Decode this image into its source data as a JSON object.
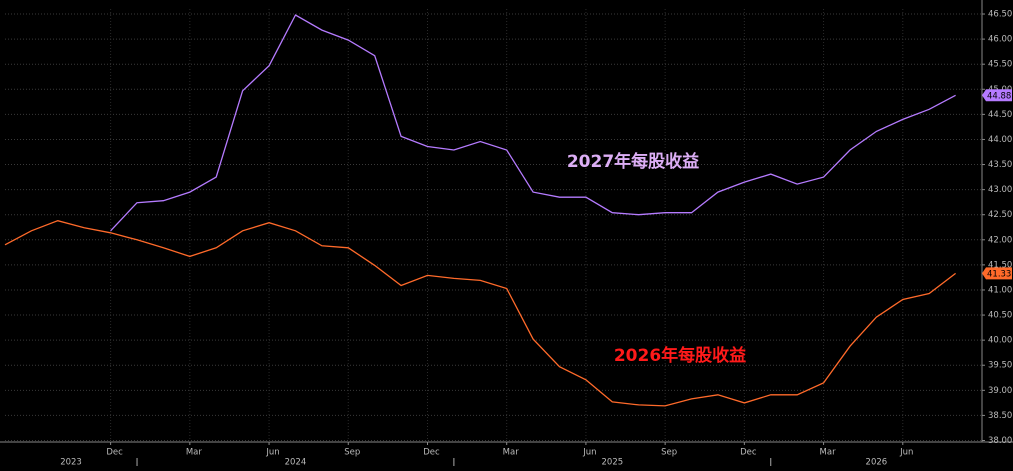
{
  "chart_data": {
    "type": "line",
    "x": [
      "2023-08",
      "2023-09",
      "2023-10",
      "2023-11",
      "2023-12",
      "2024-01",
      "2024-02",
      "2024-03",
      "2024-04",
      "2024-05",
      "2024-06",
      "2024-07",
      "2024-08",
      "2024-09",
      "2024-10",
      "2024-11",
      "2024-12",
      "2025-01",
      "2025-02",
      "2025-03",
      "2025-04",
      "2025-05",
      "2025-06",
      "2025-07",
      "2025-08",
      "2025-09",
      "2025-10",
      "2025-11",
      "2025-12",
      "2026-01",
      "2026-02",
      "2026-03",
      "2026-04",
      "2026-05",
      "2026-06",
      "2026-07",
      "2026-08"
    ],
    "series": [
      {
        "name": "2027年每股收益",
        "color": "#b57bff",
        "label_color": "#dcaef5",
        "values": [
          null,
          null,
          null,
          null,
          42.18,
          42.74,
          42.78,
          42.95,
          43.25,
          44.97,
          45.47,
          46.48,
          46.18,
          45.98,
          45.67,
          44.06,
          43.86,
          43.79,
          43.96,
          43.79,
          42.95,
          42.85,
          42.85,
          42.54,
          42.5,
          42.54,
          42.54,
          42.95,
          43.15,
          43.31,
          43.11,
          43.25,
          43.79,
          44.16,
          44.4,
          44.6,
          44.88
        ]
      },
      {
        "name": "2026年每股收益",
        "color": "#ff6a2a",
        "label_color": "#ff1a1a",
        "values": [
          41.9,
          42.18,
          42.38,
          42.24,
          42.14,
          42.0,
          41.84,
          41.67,
          41.84,
          42.18,
          42.34,
          42.18,
          41.88,
          41.84,
          41.49,
          41.09,
          41.29,
          41.23,
          41.19,
          41.03,
          40.02,
          39.47,
          39.21,
          38.77,
          38.71,
          38.69,
          38.83,
          38.91,
          38.75,
          38.91,
          38.91,
          39.15,
          39.88,
          40.46,
          40.81,
          40.93,
          41.33
        ]
      }
    ],
    "xlim": [
      "2023-08",
      "2026-09"
    ],
    "xticks": [
      {
        "value": "2023-12",
        "label": "Dec"
      },
      {
        "value": "2024-03",
        "label": "Mar"
      },
      {
        "value": "2024-06",
        "label": "Jun"
      },
      {
        "value": "2024-09",
        "label": "Sep"
      },
      {
        "value": "2024-12",
        "label": "Dec"
      },
      {
        "value": "2025-03",
        "label": "Mar"
      },
      {
        "value": "2025-06",
        "label": "Jun"
      },
      {
        "value": "2025-09",
        "label": "Sep"
      },
      {
        "value": "2025-12",
        "label": "Dec"
      },
      {
        "value": "2026-03",
        "label": "Mar"
      },
      {
        "value": "2026-06",
        "label": "Jun"
      }
    ],
    "year_labels": [
      2023,
      2024,
      2025,
      2026
    ],
    "ylim": [
      37.97,
      46.6
    ],
    "yticks": [
      {
        "value": 38,
        "label": "38.00"
      },
      {
        "value": 38.5,
        "label": "38.50"
      },
      {
        "value": 39,
        "label": "39.00"
      },
      {
        "value": 39.5,
        "label": "39.50"
      },
      {
        "value": 40,
        "label": "40.00"
      },
      {
        "value": 40.5,
        "label": "40.50"
      },
      {
        "value": 41,
        "label": "41.00"
      },
      {
        "value": 41.5,
        "label": "41.50"
      },
      {
        "value": 42,
        "label": "42.00"
      },
      {
        "value": 42.5,
        "label": "42.50"
      },
      {
        "value": 43,
        "label": "43.00"
      },
      {
        "value": 43.5,
        "label": "43.50"
      },
      {
        "value": 44,
        "label": "44.00"
      },
      {
        "value": 44.5,
        "label": "44.50"
      },
      {
        "value": 45,
        "label": "45.00"
      },
      {
        "value": 45.5,
        "label": "45.50"
      },
      {
        "value": 46,
        "label": "46.00"
      },
      {
        "value": 46.5,
        "label": "46.50"
      }
    ],
    "grid": true
  }
}
